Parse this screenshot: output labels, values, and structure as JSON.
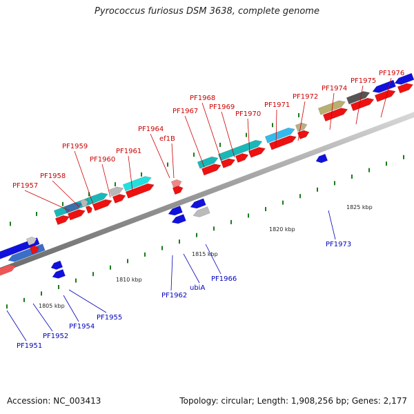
{
  "title": "Pyrococcus furiosus DSM 3638, complete genome",
  "footer": {
    "accession": "Accession: NC_003413",
    "summary": "Topology: circular; Length: 1,908,256 bp; Genes: 2,177"
  },
  "scale_labels": [
    "1805 kbp",
    "1810 kbp",
    "1815 kbp",
    "1820 kbp",
    "1825 kbp"
  ],
  "colors": {
    "forward_cds": "#ee1111",
    "reverse_cds": "#1111dd",
    "forward_label": "#cc0000",
    "reverse_label": "#0000bb",
    "backbone": "#8a8a8a",
    "tick": "#1a7a1a"
  },
  "forward_labels": [
    "PF1957",
    "PF1958",
    "PF1959",
    "PF1960",
    "PF1961",
    "PF1964",
    "ef1B",
    "PF1967",
    "PF1968",
    "PF1969",
    "PF1970",
    "PF1971",
    "PF1972",
    "PF1974",
    "PF1975",
    "PF1976"
  ],
  "reverse_labels": [
    "PF1951",
    "PF1952",
    "PF1954",
    "PF1955",
    "PF1962",
    "ubiA",
    "PF1966",
    "PF1973"
  ]
}
